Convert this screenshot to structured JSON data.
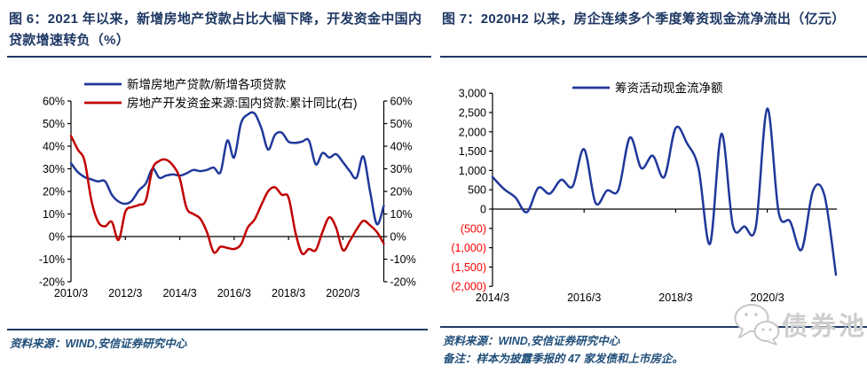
{
  "colors": {
    "blue_line": "#20389b",
    "red_line": "#c00000",
    "title_navy": "#1f3864",
    "rule_navy": "#1f3864",
    "source_blue": "#1f4e79",
    "axis_black": "#000000",
    "negative_label_red": "#ff0000",
    "logo_gray": "#cdcdcd"
  },
  "logo": {
    "text": "债券池",
    "icon": "chat-bubbles-icon"
  },
  "chart_data": [
    {
      "type": "line",
      "title": "图 6：2021 年以来，新增房地产贷款占比大幅下降，开发资金中国内贷款增速转负（%）",
      "source": "资料来源：WIND,安信证券研究中心",
      "legend_position": "top-left",
      "grid": false,
      "dual_axis": true,
      "ylim": [
        -20,
        60
      ],
      "ytick_step": 10,
      "y_labels": [
        "60%",
        "50%",
        "40%",
        "30%",
        "20%",
        "10%",
        "0%",
        "-10%",
        "-20%"
      ],
      "x_tick_labels": [
        "2010/3",
        "2012/3",
        "2014/3",
        "2016/3",
        "2018/3",
        "2020/3"
      ],
      "categories": [
        "2010/3",
        "2010/6",
        "2010/9",
        "2010/12",
        "2011/3",
        "2011/6",
        "2011/9",
        "2011/12",
        "2012/3",
        "2012/6",
        "2012/9",
        "2012/12",
        "2013/3",
        "2013/6",
        "2013/9",
        "2013/12",
        "2014/3",
        "2014/6",
        "2014/9",
        "2014/12",
        "2015/3",
        "2015/6",
        "2015/9",
        "2015/12",
        "2016/3",
        "2016/6",
        "2016/9",
        "2016/12",
        "2017/3",
        "2017/6",
        "2017/9",
        "2017/12",
        "2018/3",
        "2018/6",
        "2018/9",
        "2018/12",
        "2019/3",
        "2019/6",
        "2019/9",
        "2019/12",
        "2020/3",
        "2020/6",
        "2020/9",
        "2020/12",
        "2021/3",
        "2021/6",
        "2021/9"
      ],
      "series": [
        {
          "name": "新增房地产贷款/新增各项贷款",
          "axis": "left",
          "color": "#20389b",
          "values": [
            32.5,
            28.5,
            26.3,
            25.3,
            24.4,
            24.5,
            18.5,
            15.5,
            14.5,
            16,
            20.5,
            23.5,
            30,
            26,
            27,
            27.5,
            27,
            28,
            29.5,
            29,
            29.5,
            30.5,
            28.5,
            42.5,
            35,
            50,
            54,
            54.5,
            48,
            38.5,
            45,
            46,
            42,
            41.5,
            42,
            42.5,
            32,
            37,
            35,
            36.5,
            33,
            29,
            26,
            35.5,
            20,
            5.5,
            13.5
          ]
        },
        {
          "name": "房地产开发资金来源:国内贷款:累计同比(右)",
          "axis": "right",
          "color": "#c00000",
          "values": [
            44.5,
            38.5,
            33.5,
            16,
            6.5,
            4.5,
            6.5,
            -1.5,
            11,
            13,
            14,
            16,
            30,
            33.5,
            34,
            31.5,
            25.8,
            12.7,
            10,
            8,
            2,
            -7,
            -4.5,
            -5,
            -5.5,
            -3.5,
            4,
            7.5,
            14,
            20,
            21.8,
            18.5,
            17.3,
            2,
            -7.5,
            -5.5,
            -6,
            2,
            8.5,
            4,
            -6,
            -2,
            3,
            7,
            5,
            2,
            -3
          ]
        }
      ]
    },
    {
      "type": "line",
      "title": "图 7：2020H2 以来，房企连续多个季度筹资现金流净流出（亿元）",
      "source": "资料来源：WIND,安信证券研究中心",
      "note": "备注：样本为披露季报的 47 家发债和上市房企。",
      "legend_position": "top-center",
      "grid": false,
      "dual_axis": false,
      "ylim": [
        -2000,
        3000
      ],
      "ytick_step": 500,
      "y_labels": [
        "3,000",
        "2,500",
        "2,000",
        "1,500",
        "1,000",
        "500",
        "0",
        "(500)",
        "(1,000)",
        "(1,500)",
        "(2,000)"
      ],
      "x_tick_labels": [
        "2014/3",
        "2016/3",
        "2018/3",
        "2020/3"
      ],
      "categories": [
        "2014/3",
        "2014/6",
        "2014/9",
        "2014/12",
        "2015/3",
        "2015/6",
        "2015/9",
        "2015/12",
        "2016/3",
        "2016/6",
        "2016/9",
        "2016/12",
        "2017/3",
        "2017/6",
        "2017/9",
        "2017/12",
        "2018/3",
        "2018/6",
        "2018/9",
        "2018/12",
        "2019/3",
        "2019/6",
        "2019/9",
        "2019/12",
        "2020/3",
        "2020/6",
        "2020/9",
        "2020/12",
        "2021/3",
        "2021/6",
        "2021/9"
      ],
      "series": [
        {
          "name": "筹资活动现金流净额",
          "axis": "left",
          "color": "#20389b",
          "values": [
            830,
            520,
            300,
            -80,
            550,
            400,
            760,
            590,
            1550,
            160,
            480,
            500,
            1850,
            1060,
            1380,
            830,
            2100,
            1700,
            1050,
            -900,
            1950,
            -430,
            -450,
            -460,
            2600,
            -90,
            -320,
            -1050,
            480,
            350,
            -1700
          ]
        }
      ]
    }
  ]
}
